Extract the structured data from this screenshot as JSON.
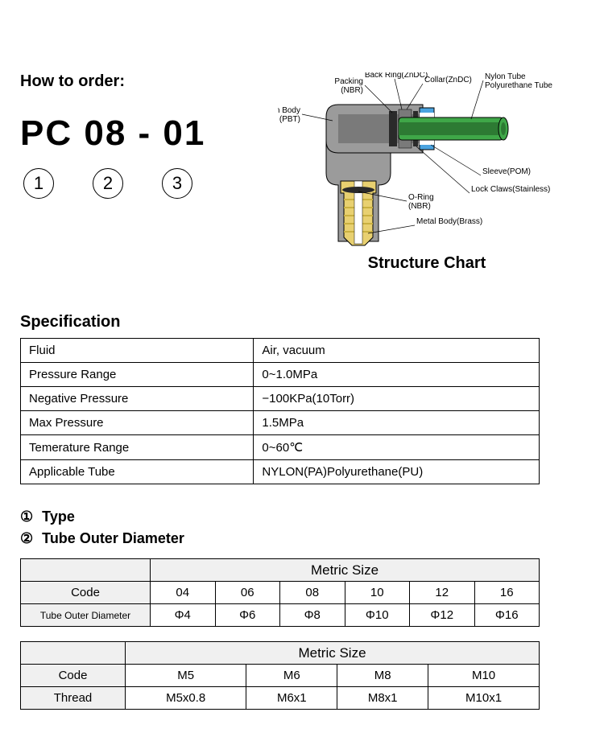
{
  "order": {
    "heading": "How to order:",
    "code": "PC 08 - 01",
    "nums": [
      "1",
      "2",
      "3"
    ]
  },
  "structure": {
    "title": "Structure Chart",
    "labels": {
      "resin_body": "Resin Body",
      "resin_body_mat": "(PBT)",
      "packing": "Packing",
      "packing_mat": "(NBR)",
      "back_ring": "Back Ring(ZnDC)",
      "collar": "Collar(ZnDC)",
      "nylon_tube": "Nylon Tube",
      "poly_tube": "Polyurethane Tube",
      "sleeve": "Sleeve(POM)",
      "lock_claws": "Lock Claws(Stainless)",
      "o_ring": "O-Ring",
      "o_ring_mat": "(NBR)",
      "metal_body": "Metal Body(Brass)"
    },
    "colors": {
      "body_gray": "#9b9b9b",
      "body_gray_dark": "#7a7a7a",
      "brass": "#e8d070",
      "brass_dark": "#c9b040",
      "tube_green": "#3fa748",
      "tube_green_dark": "#2d7a33",
      "sleeve_blue": "#4aa3e0",
      "ring_black": "#2a2a2a",
      "outline": "#000000",
      "leader": "#000000"
    }
  },
  "spec": {
    "title": "Specification",
    "rows": [
      {
        "label": "Fluid",
        "value": "Air, vacuum"
      },
      {
        "label": "Pressure Range",
        "value": "0~1.0MPa"
      },
      {
        "label": "Negative Pressure",
        "value": "−100KPa(10Torr)"
      },
      {
        "label": "Max Pressure",
        "value": "1.5MPa"
      },
      {
        "label": "Temerature Range",
        "value": "0~60℃"
      },
      {
        "label": "Applicable Tube",
        "value": "NYLON(PA)Polyurethane(PU)"
      }
    ]
  },
  "section_type": {
    "num": "①",
    "label": "Type"
  },
  "section_tube": {
    "num": "②",
    "label": "Tube Outer Diameter"
  },
  "tube_table": {
    "metric_header": "Metric Size",
    "row_labels": [
      "Code",
      "Tube Outer Diameter"
    ],
    "codes": [
      "04",
      "06",
      "08",
      "10",
      "12",
      "16"
    ],
    "diameters": [
      "Φ4",
      "Φ6",
      "Φ8",
      "Φ10",
      "Φ12",
      "Φ16"
    ]
  },
  "thread_table": {
    "metric_header": "Metric Size",
    "row_labels": [
      "Code",
      "Thread"
    ],
    "codes": [
      "M5",
      "M6",
      "M8",
      "M10"
    ],
    "threads": [
      "M5x0.8",
      "M6x1",
      "M8x1",
      "M10x1"
    ]
  }
}
